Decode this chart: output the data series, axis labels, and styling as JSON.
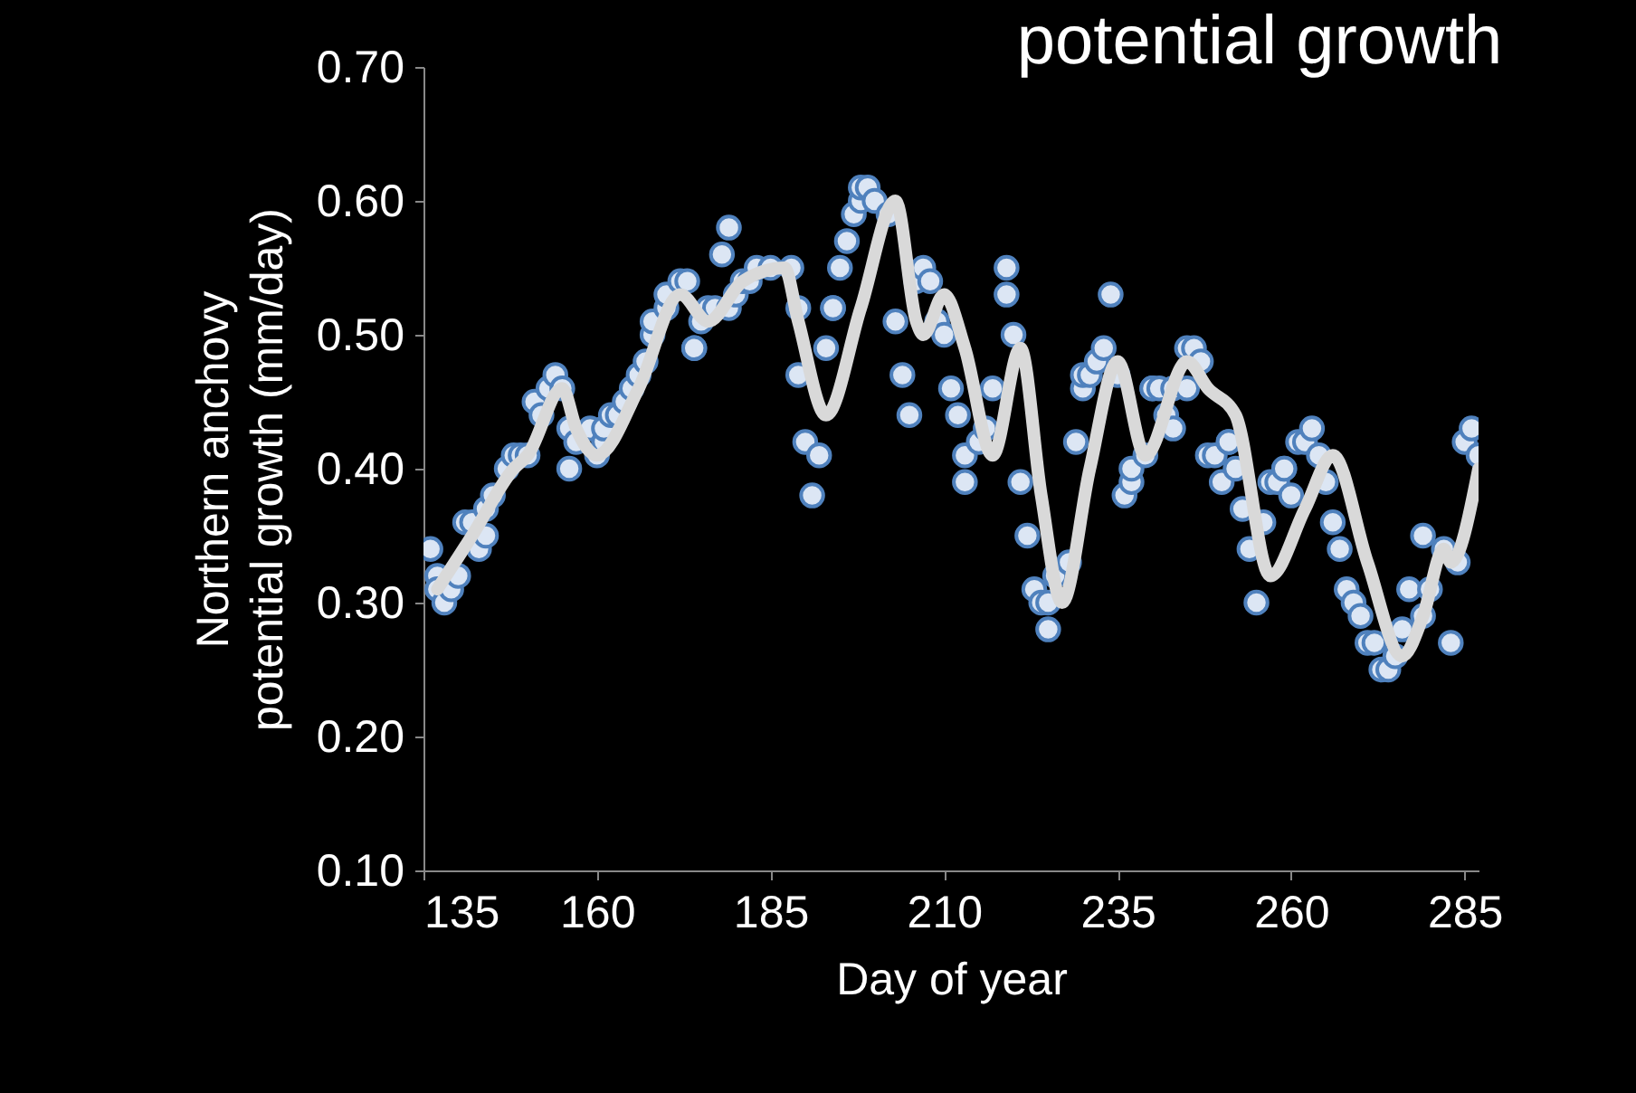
{
  "chart_data": {
    "type": "scatter",
    "title": "potential growth",
    "xlabel": "Day of year",
    "ylabel": "Northern anchovy\npotential growth (mm/day)",
    "xlim": [
      135,
      287
    ],
    "xticks": [
      135,
      160,
      185,
      210,
      235,
      260,
      285
    ],
    "ylim": [
      0.1,
      0.7
    ],
    "yticks": [
      {
        "value": 0.1,
        "label": "0.10"
      },
      {
        "value": 0.2,
        "label": "0.20"
      },
      {
        "value": 0.3,
        "label": "0.30"
      },
      {
        "value": 0.4,
        "label": "0.40"
      },
      {
        "value": 0.5,
        "label": "0.50"
      },
      {
        "value": 0.6,
        "label": "0.60"
      },
      {
        "value": 0.7,
        "label": "0.70"
      }
    ],
    "grid": false,
    "series": [
      {
        "marker": "circle",
        "color": "#4f81bd",
        "x": [
          136,
          137,
          137,
          138,
          139,
          140,
          141,
          142,
          143,
          144,
          144,
          145,
          147,
          148,
          149,
          150,
          151,
          152,
          153,
          154,
          155,
          156,
          156,
          157,
          159,
          160,
          161,
          161,
          162,
          163,
          164,
          165,
          166,
          167,
          168,
          168,
          170,
          170,
          172,
          173,
          174,
          174,
          175,
          176,
          177,
          178,
          179,
          179,
          180,
          181,
          182,
          183,
          185,
          188,
          189,
          189,
          190,
          191,
          192,
          193,
          194,
          194,
          195,
          196,
          197,
          198,
          198,
          199,
          200,
          202,
          203,
          204,
          205,
          206,
          207,
          208,
          209,
          210,
          211,
          212,
          213,
          213,
          215,
          216,
          217,
          219,
          219,
          220,
          221,
          222,
          223,
          224,
          225,
          225,
          226,
          228,
          229,
          230,
          230,
          231,
          232,
          233,
          234,
          235,
          236,
          237,
          237,
          239,
          240,
          240,
          241,
          242,
          243,
          243,
          245,
          245,
          246,
          247,
          248,
          249,
          250,
          251,
          251,
          252,
          253,
          254,
          255,
          256,
          257,
          258,
          259,
          259,
          260,
          261,
          262,
          263,
          264,
          265,
          266,
          267,
          268,
          269,
          270,
          271,
          272,
          273,
          274,
          275,
          276,
          277,
          279,
          279,
          280,
          282,
          283,
          284,
          285,
          286,
          287
        ],
        "values": [
          0.34,
          0.32,
          0.31,
          0.3,
          0.31,
          0.32,
          0.36,
          0.36,
          0.34,
          0.35,
          0.37,
          0.38,
          0.4,
          0.41,
          0.41,
          0.41,
          0.45,
          0.44,
          0.46,
          0.47,
          0.46,
          0.43,
          0.4,
          0.42,
          0.43,
          0.41,
          0.42,
          0.43,
          0.44,
          0.44,
          0.45,
          0.46,
          0.47,
          0.48,
          0.5,
          0.51,
          0.52,
          0.53,
          0.54,
          0.54,
          0.49,
          0.49,
          0.51,
          0.52,
          0.52,
          0.56,
          0.58,
          0.52,
          0.53,
          0.54,
          0.54,
          0.55,
          0.55,
          0.55,
          0.52,
          0.47,
          0.42,
          0.38,
          0.41,
          0.49,
          0.52,
          0.52,
          0.55,
          0.57,
          0.59,
          0.6,
          0.61,
          0.61,
          0.6,
          0.59,
          0.51,
          0.47,
          0.44,
          0.54,
          0.55,
          0.54,
          0.51,
          0.5,
          0.46,
          0.44,
          0.41,
          0.39,
          0.42,
          0.43,
          0.46,
          0.53,
          0.55,
          0.5,
          0.39,
          0.35,
          0.31,
          0.3,
          0.28,
          0.3,
          0.32,
          0.33,
          0.42,
          0.46,
          0.47,
          0.47,
          0.48,
          0.49,
          0.53,
          0.47,
          0.38,
          0.39,
          0.4,
          0.41,
          0.46,
          0.46,
          0.46,
          0.44,
          0.43,
          0.46,
          0.46,
          0.49,
          0.49,
          0.48,
          0.41,
          0.41,
          0.39,
          0.42,
          0.42,
          0.4,
          0.37,
          0.34,
          0.3,
          0.36,
          0.39,
          0.39,
          0.4,
          0.4,
          0.38,
          0.42,
          0.42,
          0.43,
          0.41,
          0.39,
          0.36,
          0.34,
          0.31,
          0.3,
          0.29,
          0.27,
          0.27,
          0.25,
          0.25,
          0.26,
          0.28,
          0.31,
          0.29,
          0.35,
          0.31,
          0.34,
          0.27,
          0.33,
          0.42,
          0.43,
          0.41
        ]
      },
      {
        "type": "line",
        "marker": "none",
        "color": "#d9d9d9",
        "line_style": "solid",
        "x": [
          137,
          142,
          148,
          150,
          155,
          157,
          160,
          166,
          172,
          176,
          181,
          187,
          189,
          193,
          198,
          203,
          206,
          207,
          210,
          213,
          217,
          221,
          224,
          227,
          231,
          235,
          239,
          245,
          248,
          252,
          257,
          262,
          266,
          271,
          276,
          279,
          282,
          283,
          287
        ],
        "values": [
          0.31,
          0.35,
          0.4,
          0.41,
          0.46,
          0.43,
          0.41,
          0.46,
          0.53,
          0.51,
          0.54,
          0.55,
          0.51,
          0.44,
          0.52,
          0.6,
          0.51,
          0.5,
          0.53,
          0.49,
          0.41,
          0.49,
          0.38,
          0.3,
          0.4,
          0.48,
          0.41,
          0.48,
          0.46,
          0.44,
          0.32,
          0.37,
          0.41,
          0.33,
          0.26,
          0.29,
          0.34,
          0.33,
          0.4
        ]
      }
    ]
  }
}
